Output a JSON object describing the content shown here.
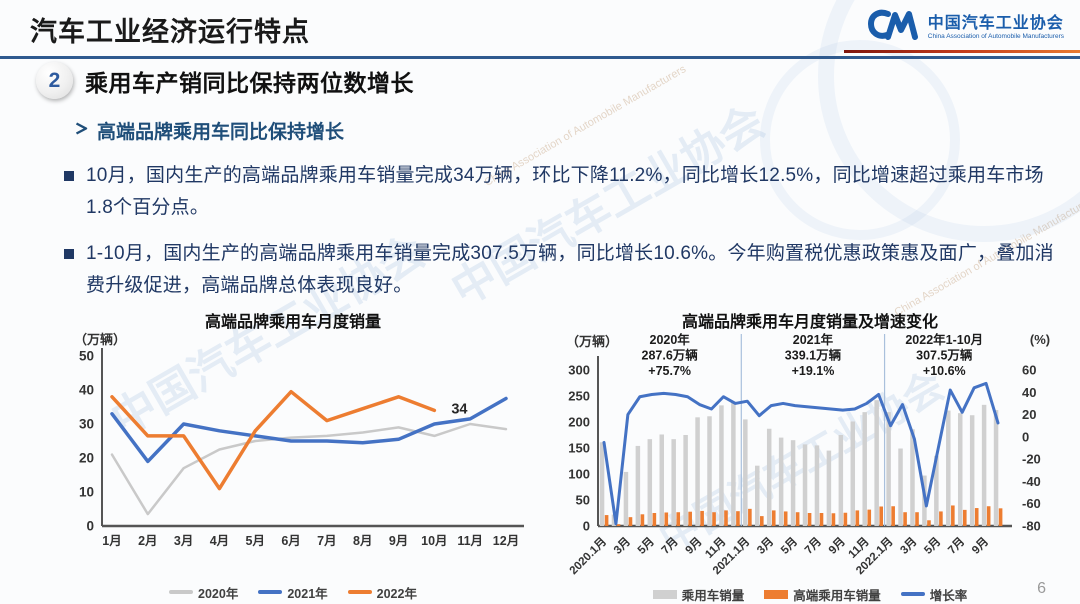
{
  "slide": {
    "title": "汽车工业经济运行特点",
    "page_number": "6",
    "watermark": {
      "cn": "中国汽车工业协会",
      "en": "China Association of Automobile Manufacturers"
    }
  },
  "logo": {
    "cn": "中国汽车工业协会",
    "en": "China Association of Automobile Manufacturers"
  },
  "section": {
    "number": "2",
    "title": "乘用车产销同比保持两位数增长"
  },
  "subheading": {
    "text": "高端品牌乘用车同比保持增长"
  },
  "bullets": [
    {
      "text": "10月，国内生产的高端品牌乘用车销量完成34万辆，环比下降11.2%，同比增长12.5%，同比增速超过乘用车市场1.8个百分点。"
    },
    {
      "text": "1-10月，国内生产的高端品牌乘用车销量完成307.5万辆，同比增长10.6%。今年购置税优惠政策惠及面广，叠加消费升级促进，高端品牌总体表现良好。"
    }
  ],
  "colors": {
    "accent_blue": "#2f5a8f",
    "heading_blue": "#1f4e79",
    "navy_text": "#203864",
    "logo_blue": "#1a5dab",
    "series_2020_gray": "#c9c9c9",
    "series_2021_blue": "#4472c4",
    "series_2022_orange": "#ed7d31",
    "bar_gray": "#d0d0d0",
    "bar_orange": "#ed7d31",
    "growth_line_blue": "#4472c4"
  },
  "chart_data": [
    {
      "type": "line",
      "title": "高端品牌乘用车月度销量",
      "unit_label": "（万辆）",
      "categories": [
        "1月",
        "2月",
        "3月",
        "4月",
        "5月",
        "6月",
        "7月",
        "8月",
        "9月",
        "10月",
        "11月",
        "12月"
      ],
      "ylim": [
        0,
        50
      ],
      "yticks": [
        0,
        10,
        20,
        30,
        40,
        50
      ],
      "grid": false,
      "legend_position": "bottom",
      "series": [
        {
          "name": "2020年",
          "color": "#c9c9c9",
          "values": [
            21,
            3.5,
            17,
            22.5,
            25,
            26,
            26.5,
            27.5,
            29,
            26.5,
            30,
            28.5
          ]
        },
        {
          "name": "2021年",
          "color": "#4472c4",
          "values": [
            33,
            19,
            30,
            28,
            26.5,
            25,
            25,
            24.5,
            25.5,
            30,
            31.5,
            37.5
          ]
        },
        {
          "name": "2022年",
          "color": "#ed7d31",
          "values": [
            38,
            26.5,
            26.5,
            11,
            28,
            39.5,
            31,
            34.5,
            38,
            34
          ]
        }
      ],
      "annotations": [
        {
          "text": "34",
          "series_index": 2,
          "point_index": 9
        }
      ]
    },
    {
      "type": "combo",
      "title": "高端品牌乘用车月度销量及增速变化",
      "left_unit_label": "（万辆）",
      "right_unit_label": "(%)",
      "x_labels": [
        "2020.1月",
        "",
        "3月",
        "",
        "5月",
        "",
        "7月",
        "",
        "9月",
        "",
        "11月",
        "",
        "2021.1月",
        "",
        "3月",
        "",
        "5月",
        "",
        "7月",
        "",
        "9月",
        "",
        "11月",
        "",
        "2022.1月",
        "",
        "3月",
        "",
        "5月",
        "",
        "7月",
        "",
        "9月",
        ""
      ],
      "left_ylim": [
        0,
        300
      ],
      "left_yticks": [
        0,
        50,
        100,
        150,
        200,
        250,
        300
      ],
      "right_ylim": [
        -80,
        60
      ],
      "right_yticks": [
        -80,
        -60,
        -40,
        -20,
        0,
        20,
        40,
        60
      ],
      "grid": false,
      "legend_position": "bottom",
      "bar_series": [
        {
          "name": "乘用车销量",
          "color": "#d0d0d0",
          "values": [
            161,
            22,
            104,
            154,
            167,
            176,
            167,
            175,
            209,
            211,
            232,
            238,
            205,
            116,
            187,
            170,
            165,
            157,
            155,
            145,
            175,
            201,
            219,
            242,
            219,
            149,
            186,
            97,
            135,
            222,
            217,
            213,
            233,
            223
          ]
        },
        {
          "name": "高端乘用车销量",
          "color": "#ed7d31",
          "values": [
            21,
            3.5,
            17,
            22.5,
            25,
            26,
            26.5,
            27.5,
            29,
            26.5,
            30,
            28.5,
            33,
            19,
            30,
            28,
            26.5,
            25,
            25,
            24.5,
            25.5,
            30,
            31.5,
            37.5,
            38,
            26.5,
            26.5,
            11,
            28,
            39.5,
            31,
            34.5,
            38,
            34
          ]
        }
      ],
      "line_series": {
        "name": "增长率",
        "color": "#4472c4",
        "values": [
          -5,
          -78,
          20,
          36,
          38,
          39,
          38,
          36,
          29,
          25,
          36,
          30,
          32,
          19,
          28,
          30,
          28,
          27,
          26,
          25,
          24,
          25,
          30,
          38,
          10,
          29,
          -2,
          -62,
          -10,
          42,
          22,
          44,
          48,
          12.5
        ]
      },
      "year_dividers_after_index": [
        11,
        23
      ],
      "annotations": [
        {
          "center_index": 5.5,
          "lines": [
            "2020年",
            "287.6万辆",
            "+75.7%"
          ]
        },
        {
          "center_index": 17.5,
          "lines": [
            "2021年",
            "339.1万辆",
            "+19.1%"
          ]
        },
        {
          "center_index": 28.5,
          "lines": [
            "2022年1-10月",
            "307.5万辆",
            "+10.6%"
          ]
        }
      ]
    }
  ]
}
